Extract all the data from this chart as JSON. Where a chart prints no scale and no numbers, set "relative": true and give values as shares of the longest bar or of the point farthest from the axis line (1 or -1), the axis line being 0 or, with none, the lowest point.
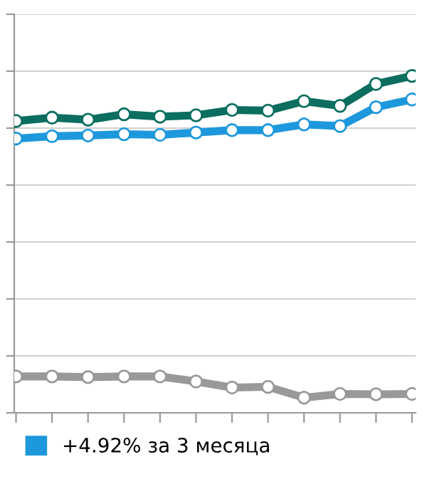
{
  "chart_data": {
    "type": "line",
    "relative": true,
    "grid": "y",
    "marker": "circle",
    "line_style": "solid",
    "legend": "bottom left",
    "categories": [
      null,
      null,
      null,
      null,
      null,
      null,
      null,
      null,
      null,
      null,
      null,
      null
    ],
    "series": [
      {
        "color": "#0b6e5f",
        "values": [
          0.866,
          0.876,
          0.87,
          0.886,
          0.879,
          0.883,
          0.899,
          0.897,
          0.925,
          0.911,
          0.976,
          1
        ]
      },
      {
        "name": "+4.92% за 3 месяца",
        "color": "#1e98dc",
        "values": [
          0.814,
          0.821,
          0.823,
          0.827,
          0.825,
          0.832,
          0.839,
          0.839,
          0.856,
          0.851,
          0.907,
          0.93
        ]
      },
      {
        "color": "#999999",
        "values": [
          0.108,
          0.108,
          0.106,
          0.108,
          0.108,
          0.093,
          0.075,
          0.077,
          0.045,
          0.056,
          0.055,
          0.056
        ]
      }
    ]
  }
}
